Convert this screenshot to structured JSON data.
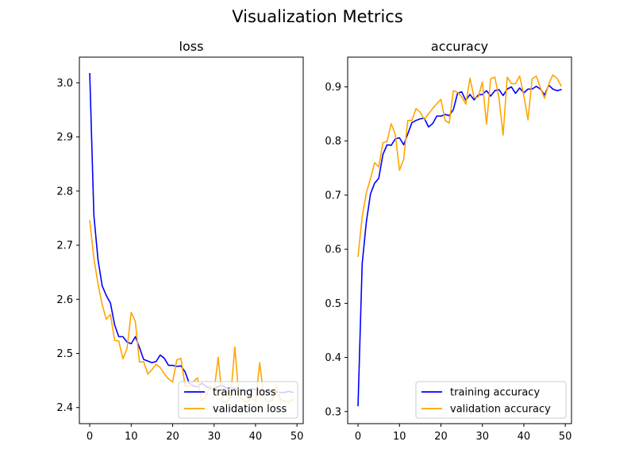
{
  "figure": {
    "suptitle": "Visualization Metrics"
  },
  "colors": {
    "training": "#0000ff",
    "validation": "#ffa500",
    "axes": "#000000",
    "legend_border": "#cccccc"
  },
  "chart_data": [
    {
      "type": "line",
      "title": "loss",
      "xlabel": "",
      "ylabel": "",
      "xlim": [
        -2.5,
        51.5
      ],
      "ylim": [
        2.3703,
        3.0475
      ],
      "xticks": [
        0,
        10,
        20,
        30,
        40,
        50
      ],
      "xtick_labels": [
        "0",
        "10",
        "20",
        "30",
        "40",
        "50"
      ],
      "yticks": [
        2.4,
        2.5,
        2.6,
        2.7,
        2.8,
        2.9,
        3.0
      ],
      "ytick_labels": [
        "2.4",
        "2.5",
        "2.6",
        "2.7",
        "2.8",
        "2.9",
        "3.0"
      ],
      "grid": false,
      "legend_position": "lower-right",
      "x": [
        0,
        1,
        2,
        3,
        4,
        5,
        6,
        7,
        8,
        9,
        10,
        11,
        12,
        13,
        14,
        15,
        16,
        17,
        18,
        19,
        20,
        21,
        22,
        23,
        24,
        25,
        26,
        27,
        28,
        29,
        30,
        31,
        32,
        33,
        34,
        35,
        36,
        37,
        38,
        39,
        40,
        41,
        42,
        43,
        44,
        45,
        46,
        47,
        48,
        49
      ],
      "series": [
        {
          "name": "training loss",
          "color": "#0000ff",
          "values": [
            3.017,
            2.755,
            2.673,
            2.625,
            2.607,
            2.593,
            2.553,
            2.531,
            2.531,
            2.521,
            2.518,
            2.531,
            2.511,
            2.489,
            2.486,
            2.483,
            2.485,
            2.497,
            2.491,
            2.478,
            2.478,
            2.476,
            2.477,
            2.466,
            2.445,
            2.44,
            2.438,
            2.445,
            2.439,
            2.436,
            2.434,
            2.439,
            2.441,
            2.436,
            2.437,
            2.435,
            2.433,
            2.432,
            2.431,
            2.435,
            2.433,
            2.432,
            2.431,
            2.43,
            2.429,
            2.429,
            2.428,
            2.428,
            2.43,
            2.428
          ]
        },
        {
          "name": "validation loss",
          "color": "#ffa500",
          "values": [
            2.745,
            2.676,
            2.628,
            2.59,
            2.563,
            2.572,
            2.524,
            2.523,
            2.49,
            2.509,
            2.576,
            2.559,
            2.484,
            2.485,
            2.462,
            2.47,
            2.48,
            2.474,
            2.462,
            2.453,
            2.447,
            2.488,
            2.491,
            2.44,
            2.44,
            2.448,
            2.455,
            2.413,
            2.419,
            2.44,
            2.43,
            2.493,
            2.412,
            2.41,
            2.42,
            2.512,
            2.42,
            2.415,
            2.41,
            2.418,
            2.412,
            2.483,
            2.42,
            2.41,
            2.413,
            2.44,
            2.415,
            2.412,
            2.41,
            2.415
          ]
        }
      ]
    },
    {
      "type": "line",
      "title": "accuracy",
      "xlabel": "",
      "ylabel": "",
      "xlim": [
        -2.5,
        51.5
      ],
      "ylim": [
        0.2777,
        0.955
      ],
      "xticks": [
        0,
        10,
        20,
        30,
        40,
        50
      ],
      "xtick_labels": [
        "0",
        "10",
        "20",
        "30",
        "40",
        "50"
      ],
      "yticks": [
        0.3,
        0.4,
        0.5,
        0.6,
        0.7,
        0.8,
        0.9
      ],
      "ytick_labels": [
        "0.3",
        "0.4",
        "0.5",
        "0.6",
        "0.7",
        "0.8",
        "0.9"
      ],
      "grid": false,
      "legend_position": "lower-right",
      "x": [
        0,
        1,
        2,
        3,
        4,
        5,
        6,
        7,
        8,
        9,
        10,
        11,
        12,
        13,
        14,
        15,
        16,
        17,
        18,
        19,
        20,
        21,
        22,
        23,
        24,
        25,
        26,
        27,
        28,
        29,
        30,
        31,
        32,
        33,
        34,
        35,
        36,
        37,
        38,
        39,
        40,
        41,
        42,
        43,
        44,
        45,
        46,
        47,
        48,
        49
      ],
      "series": [
        {
          "name": "training accuracy",
          "color": "#0000ff",
          "values": [
            0.311,
            0.573,
            0.65,
            0.702,
            0.722,
            0.731,
            0.775,
            0.793,
            0.792,
            0.804,
            0.806,
            0.793,
            0.813,
            0.834,
            0.838,
            0.841,
            0.842,
            0.826,
            0.832,
            0.846,
            0.846,
            0.849,
            0.847,
            0.858,
            0.888,
            0.891,
            0.875,
            0.886,
            0.876,
            0.885,
            0.886,
            0.893,
            0.883,
            0.893,
            0.895,
            0.884,
            0.896,
            0.9,
            0.888,
            0.898,
            0.889,
            0.896,
            0.896,
            0.901,
            0.896,
            0.885,
            0.903,
            0.896,
            0.893,
            0.895
          ]
        },
        {
          "name": "validation accuracy",
          "color": "#ffa500",
          "values": [
            0.587,
            0.66,
            0.704,
            0.73,
            0.76,
            0.752,
            0.797,
            0.799,
            0.832,
            0.812,
            0.746,
            0.766,
            0.838,
            0.838,
            0.86,
            0.853,
            0.84,
            0.85,
            0.86,
            0.869,
            0.877,
            0.838,
            0.833,
            0.893,
            0.89,
            0.882,
            0.868,
            0.916,
            0.88,
            0.881,
            0.909,
            0.831,
            0.915,
            0.918,
            0.88,
            0.811,
            0.918,
            0.906,
            0.906,
            0.92,
            0.884,
            0.839,
            0.915,
            0.92,
            0.898,
            0.879,
            0.905,
            0.922,
            0.916,
            0.902
          ]
        }
      ]
    }
  ]
}
